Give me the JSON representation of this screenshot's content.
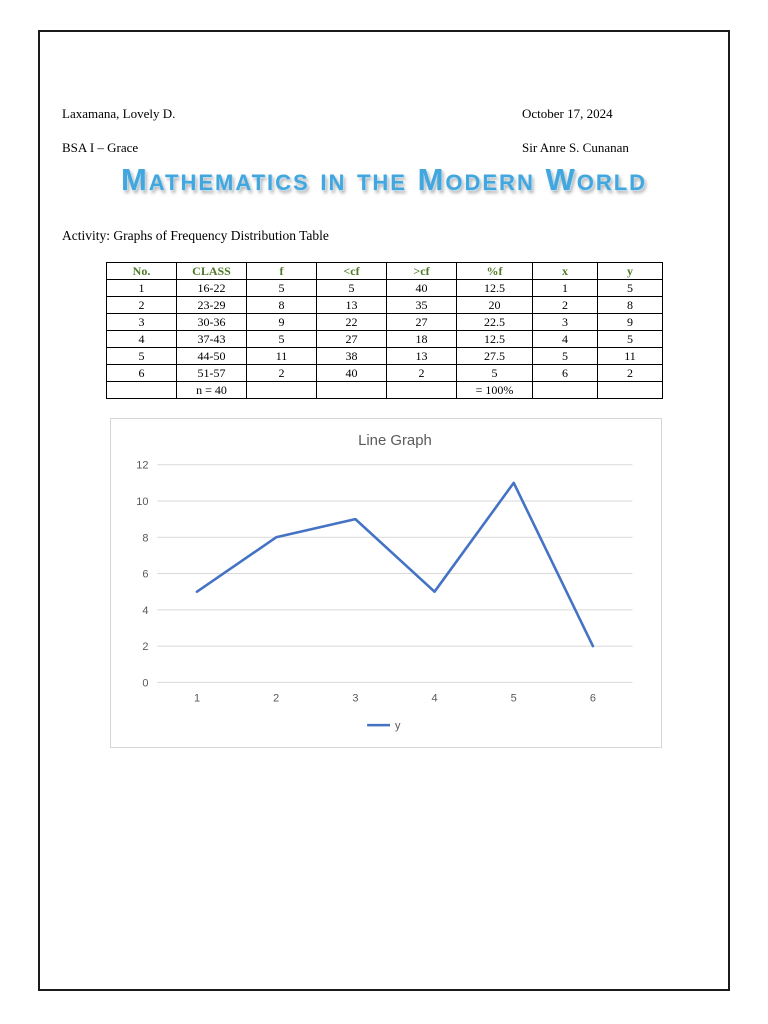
{
  "header": {
    "student_name": "Laxamana, Lovely D.",
    "section": "BSA I – Grace",
    "date": "October 17, 2024",
    "teacher": "Sir Anre S. Cunanan"
  },
  "title": "Mathematics in the Modern World",
  "activity_label": "Activity: Graphs of Frequency Distribution Table",
  "table": {
    "header_color": "#4f7a28",
    "headers": [
      "No.",
      "CLASS",
      "f",
      "<cf",
      ">cf",
      "%f",
      "x",
      "y"
    ],
    "rows": [
      [
        "1",
        "16-22",
        "5",
        "5",
        "40",
        "12.5",
        "1",
        "5"
      ],
      [
        "2",
        "23-29",
        "8",
        "13",
        "35",
        "20",
        "2",
        "8"
      ],
      [
        "3",
        "30-36",
        "9",
        "22",
        "27",
        "22.5",
        "3",
        "9"
      ],
      [
        "4",
        "37-43",
        "5",
        "27",
        "18",
        "12.5",
        "4",
        "5"
      ],
      [
        "5",
        "44-50",
        "11",
        "38",
        "13",
        "27.5",
        "5",
        "11"
      ],
      [
        "6",
        "51-57",
        "2",
        "40",
        "2",
        "5",
        "6",
        "2"
      ],
      [
        "",
        "n = 40",
        "",
        "",
        "",
        "= 100%",
        "",
        ""
      ]
    ]
  },
  "chart_data": {
    "type": "line",
    "title": "Line Graph",
    "x": [
      1,
      2,
      3,
      4,
      5,
      6
    ],
    "series": [
      {
        "name": "y",
        "values": [
          5,
          8,
          9,
          5,
          11,
          2
        ]
      }
    ],
    "ylim": [
      0,
      12
    ],
    "yticks": [
      0,
      2,
      4,
      6,
      8,
      10,
      12
    ],
    "grid": true,
    "legend_position": "bottom",
    "line_color": "#4472c4",
    "grid_color": "#d9d9d9"
  }
}
